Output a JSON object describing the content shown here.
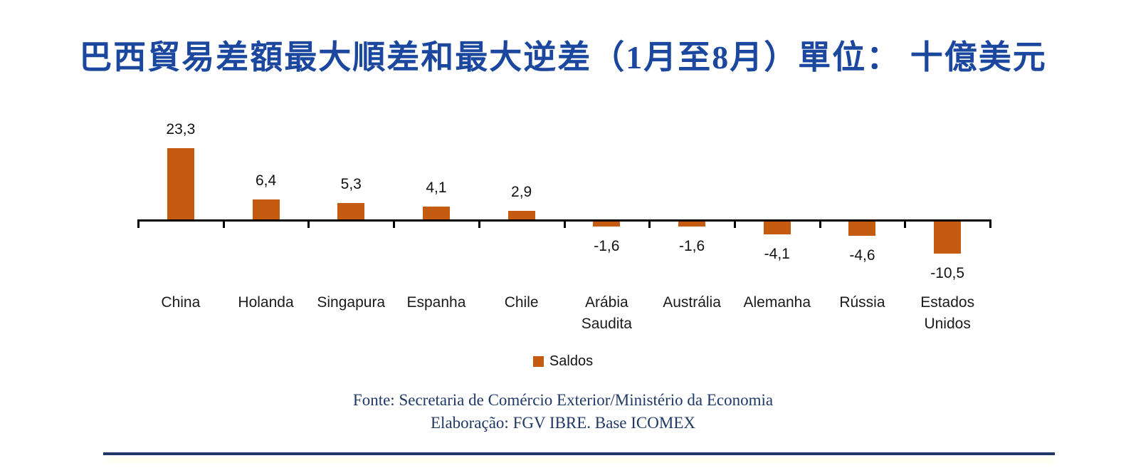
{
  "title": {
    "text": "巴西貿易差額最大順差和最大逆差（1月至8月）單位： 十億美元",
    "color": "#1B489E"
  },
  "chart_data": {
    "type": "bar",
    "categories": [
      "China",
      "Holanda",
      "Singapura",
      "Espanha",
      "Chile",
      "Arábia Saudita",
      "Austrália",
      "Alemanha",
      "Rússia",
      "Estados Unidos"
    ],
    "values": [
      23.3,
      6.4,
      5.3,
      4.1,
      2.9,
      -1.6,
      -1.6,
      -4.1,
      -4.6,
      -10.5
    ],
    "value_labels": [
      "23,3",
      "6,4",
      "5,3",
      "4,1",
      "2,9",
      "-1,6",
      "-1,6",
      "-4,1",
      "-4,6",
      "-10,5"
    ],
    "series_name": "Saldos",
    "title": "巴西貿易差額最大順差和最大逆差（1月至8月）單位： 十億美元",
    "xlabel": "",
    "ylabel": "",
    "ylim": [
      -12,
      25
    ],
    "grid": false,
    "legend_position": "bottom",
    "bar_color": "#C55A11",
    "axis_color": "#000000"
  },
  "legend": {
    "label": "Saldos",
    "marker_color": "#C55A11"
  },
  "footer": {
    "line1": "Fonte: Secretaria de Comércio Exterior/Ministério da Economia",
    "line2": "Elaboração: FGV IBRE. Base ICOMEX",
    "color": "#1F3864"
  },
  "divider": {
    "color": "#1F3864"
  }
}
